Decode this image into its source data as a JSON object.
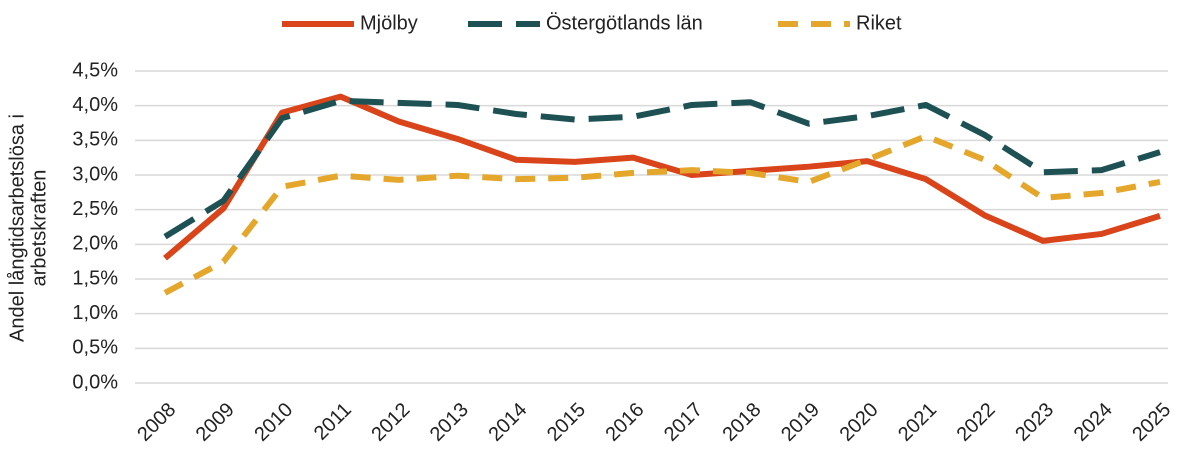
{
  "chart_data": {
    "type": "line",
    "y_label": [
      "Andel långtidsarbetslösa i",
      "arbetskraften"
    ],
    "categories": [
      "2008",
      "2009",
      "2010",
      "2011",
      "2012",
      "2013",
      "2014",
      "2015",
      "2016",
      "2017",
      "2018",
      "2019",
      "2020",
      "2021",
      "2022",
      "2023",
      "2024",
      "2025"
    ],
    "series": [
      {
        "name": "Mjölby",
        "color": "#d9441a",
        "dash": "solid",
        "values": [
          1.8,
          2.52,
          3.9,
          4.13,
          3.77,
          3.52,
          3.22,
          3.19,
          3.25,
          3.0,
          3.06,
          3.12,
          3.2,
          2.94,
          2.42,
          2.05,
          2.15,
          2.41
        ]
      },
      {
        "name": "Östergötlands län",
        "color": "#1e5154",
        "dash": "long-dash",
        "values": [
          2.11,
          2.63,
          3.82,
          4.07,
          4.04,
          4.01,
          3.88,
          3.8,
          3.84,
          4.01,
          4.05,
          3.74,
          3.85,
          4.01,
          3.58,
          3.04,
          3.07,
          3.33
        ]
      },
      {
        "name": "Riket",
        "color": "#e4a72b",
        "dash": "dash",
        "values": [
          1.3,
          1.75,
          2.83,
          2.99,
          2.93,
          2.99,
          2.94,
          2.96,
          3.03,
          3.07,
          3.03,
          2.9,
          3.22,
          3.56,
          3.22,
          2.67,
          2.74,
          2.9
        ]
      }
    ],
    "ylim": [
      0,
      4.5
    ],
    "yticks": [
      {
        "value": 0,
        "label": "0,0%"
      },
      {
        "value": 0.5,
        "label": "0,5%"
      },
      {
        "value": 1,
        "label": "1,0%"
      },
      {
        "value": 1.5,
        "label": "1,5%"
      },
      {
        "value": 2,
        "label": "2,0%"
      },
      {
        "value": 2.5,
        "label": "2,5%"
      },
      {
        "value": 3,
        "label": "3,0%"
      },
      {
        "value": 3.5,
        "label": "3,5%"
      },
      {
        "value": 4,
        "label": "4,0%"
      },
      {
        "value": 4.5,
        "label": "4,5%"
      }
    ],
    "grid": true,
    "legend": "top"
  }
}
